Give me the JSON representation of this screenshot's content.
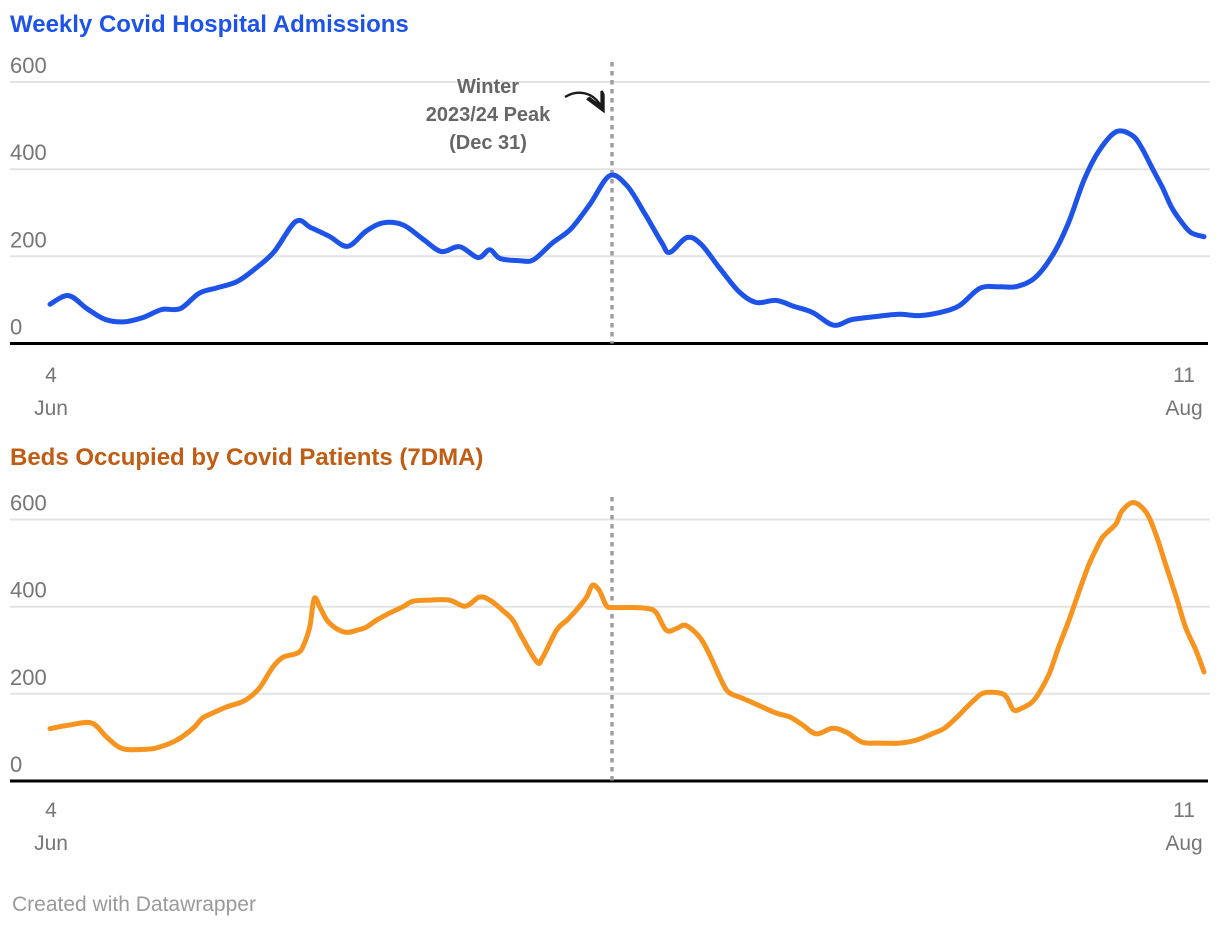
{
  "footer": {
    "credit": "Created with Datawrapper"
  },
  "style": {
    "gridline_color": "#e4e4e4",
    "axis_line_color": "#000000",
    "tick_label_color": "#767676"
  },
  "chart_data": [
    {
      "type": "line",
      "title": "Weekly Covid Hospital Admissions",
      "title_color": "#1d53e8",
      "series_name": "Weekly Covid hospital admissions",
      "series_color": "#1d53e8",
      "line_width": 5,
      "x_axis": {
        "start_label": {
          "day": "4",
          "month": "Jun"
        },
        "end_label": {
          "day": "11",
          "month": "Aug"
        }
      },
      "y_axis": {
        "range": [
          0,
          600
        ],
        "ticks": [
          0,
          200,
          400,
          600
        ],
        "gridlines": true
      },
      "annotation": {
        "lines": [
          "Winter",
          "2023/24 Peak",
          "(Dec 31)"
        ],
        "x_fraction": 0.487,
        "has_arrow": true,
        "text_color": "#666666",
        "arrow_color": "#1a1a1a",
        "dotted_line_color": "#9f9f9f"
      },
      "points": [
        [
          0,
          90
        ],
        [
          0.016,
          110
        ],
        [
          0.032,
          80
        ],
        [
          0.048,
          55
        ],
        [
          0.065,
          50
        ],
        [
          0.081,
          60
        ],
        [
          0.097,
          78
        ],
        [
          0.113,
          80
        ],
        [
          0.129,
          115
        ],
        [
          0.145,
          128
        ],
        [
          0.162,
          142
        ],
        [
          0.177,
          170
        ],
        [
          0.194,
          210
        ],
        [
          0.213,
          280
        ],
        [
          0.226,
          266
        ],
        [
          0.242,
          246
        ],
        [
          0.258,
          223
        ],
        [
          0.274,
          258
        ],
        [
          0.289,
          277
        ],
        [
          0.306,
          272
        ],
        [
          0.323,
          240
        ],
        [
          0.339,
          211
        ],
        [
          0.355,
          222
        ],
        [
          0.371,
          197
        ],
        [
          0.381,
          215
        ],
        [
          0.39,
          195
        ],
        [
          0.407,
          190
        ],
        [
          0.419,
          192
        ],
        [
          0.435,
          230
        ],
        [
          0.451,
          262
        ],
        [
          0.468,
          320
        ],
        [
          0.485,
          385
        ],
        [
          0.5,
          362
        ],
        [
          0.515,
          300
        ],
        [
          0.53,
          232
        ],
        [
          0.537,
          209
        ],
        [
          0.552,
          243
        ],
        [
          0.564,
          228
        ],
        [
          0.58,
          174
        ],
        [
          0.597,
          119
        ],
        [
          0.612,
          94
        ],
        [
          0.629,
          99
        ],
        [
          0.645,
          85
        ],
        [
          0.661,
          71
        ],
        [
          0.679,
          42
        ],
        [
          0.695,
          55
        ],
        [
          0.716,
          62
        ],
        [
          0.736,
          67
        ],
        [
          0.753,
          64
        ],
        [
          0.771,
          71
        ],
        [
          0.788,
          87
        ],
        [
          0.806,
          127
        ],
        [
          0.823,
          130
        ],
        [
          0.838,
          131
        ],
        [
          0.854,
          152
        ],
        [
          0.87,
          208
        ],
        [
          0.883,
          280
        ],
        [
          0.896,
          375
        ],
        [
          0.909,
          442
        ],
        [
          0.924,
          486
        ],
        [
          0.938,
          477
        ],
        [
          0.946,
          449
        ],
        [
          0.955,
          403
        ],
        [
          0.964,
          358
        ],
        [
          0.972,
          312
        ],
        [
          0.981,
          277
        ],
        [
          0.989,
          254
        ],
        [
          1,
          245
        ]
      ]
    },
    {
      "type": "line",
      "title": "Beds Occupied by Covid Patients (7DMA)",
      "title_color": "#c05c13",
      "series_name": "Beds occupied by Covid patients (7-day moving average)",
      "series_color": "#f6941f",
      "line_width": 5,
      "x_axis": {
        "start_label": {
          "day": "4",
          "month": "Jun"
        },
        "end_label": {
          "day": "11",
          "month": "Aug"
        }
      },
      "y_axis": {
        "range": [
          0,
          600
        ],
        "ticks": [
          0,
          200,
          400,
          600
        ],
        "gridlines": true
      },
      "annotation": {
        "lines": [],
        "x_fraction": 0.487,
        "has_arrow": false,
        "text_color": "#666666",
        "arrow_color": "#1a1a1a",
        "dotted_line_color": "#9f9f9f"
      },
      "points": [
        [
          0,
          120
        ],
        [
          0.016,
          128
        ],
        [
          0.036,
          133
        ],
        [
          0.049,
          101
        ],
        [
          0.063,
          74
        ],
        [
          0.084,
          73
        ],
        [
          0.095,
          78
        ],
        [
          0.11,
          94
        ],
        [
          0.124,
          121
        ],
        [
          0.132,
          144
        ],
        [
          0.141,
          156
        ],
        [
          0.153,
          170
        ],
        [
          0.165,
          180
        ],
        [
          0.173,
          192
        ],
        [
          0.182,
          215
        ],
        [
          0.193,
          261
        ],
        [
          0.202,
          284
        ],
        [
          0.214,
          293
        ],
        [
          0.219,
          307
        ],
        [
          0.225,
          353
        ],
        [
          0.229,
          419
        ],
        [
          0.234,
          398
        ],
        [
          0.24,
          369
        ],
        [
          0.248,
          350
        ],
        [
          0.257,
          341
        ],
        [
          0.266,
          346
        ],
        [
          0.274,
          353
        ],
        [
          0.283,
          369
        ],
        [
          0.294,
          385
        ],
        [
          0.306,
          400
        ],
        [
          0.314,
          412
        ],
        [
          0.329,
          415
        ],
        [
          0.346,
          415
        ],
        [
          0.36,
          401
        ],
        [
          0.372,
          422
        ],
        [
          0.381,
          415
        ],
        [
          0.392,
          392
        ],
        [
          0.401,
          369
        ],
        [
          0.409,
          330
        ],
        [
          0.422,
          273
        ],
        [
          0.427,
          284
        ],
        [
          0.439,
          346
        ],
        [
          0.448,
          369
        ],
        [
          0.456,
          392
        ],
        [
          0.465,
          422
        ],
        [
          0.47,
          449
        ],
        [
          0.476,
          437
        ],
        [
          0.482,
          403
        ],
        [
          0.487,
          398
        ],
        [
          0.502,
          398
        ],
        [
          0.517,
          396
        ],
        [
          0.525,
          387
        ],
        [
          0.534,
          346
        ],
        [
          0.543,
          350
        ],
        [
          0.551,
          357
        ],
        [
          0.563,
          330
        ],
        [
          0.571,
          293
        ],
        [
          0.583,
          224
        ],
        [
          0.589,
          202
        ],
        [
          0.6,
          190
        ],
        [
          0.617,
          170
        ],
        [
          0.629,
          156
        ],
        [
          0.641,
          147
        ],
        [
          0.652,
          129
        ],
        [
          0.664,
          108
        ],
        [
          0.678,
          121
        ],
        [
          0.69,
          112
        ],
        [
          0.704,
          89
        ],
        [
          0.719,
          87
        ],
        [
          0.736,
          87
        ],
        [
          0.751,
          94
        ],
        [
          0.764,
          108
        ],
        [
          0.775,
          121
        ],
        [
          0.785,
          144
        ],
        [
          0.792,
          163
        ],
        [
          0.801,
          186
        ],
        [
          0.809,
          202
        ],
        [
          0.823,
          202
        ],
        [
          0.829,
          192
        ],
        [
          0.835,
          163
        ],
        [
          0.842,
          167
        ],
        [
          0.851,
          181
        ],
        [
          0.857,
          202
        ],
        [
          0.866,
          247
        ],
        [
          0.874,
          307
        ],
        [
          0.883,
          369
        ],
        [
          0.892,
          437
        ],
        [
          0.9,
          495
        ],
        [
          0.906,
          529
        ],
        [
          0.912,
          559
        ],
        [
          0.918,
          575
        ],
        [
          0.924,
          591
        ],
        [
          0.929,
          620
        ],
        [
          0.939,
          639
        ],
        [
          0.95,
          616
        ],
        [
          0.958,
          568
        ],
        [
          0.967,
          495
        ],
        [
          0.976,
          422
        ],
        [
          0.984,
          353
        ],
        [
          0.993,
          300
        ],
        [
          1,
          250
        ]
      ]
    }
  ]
}
